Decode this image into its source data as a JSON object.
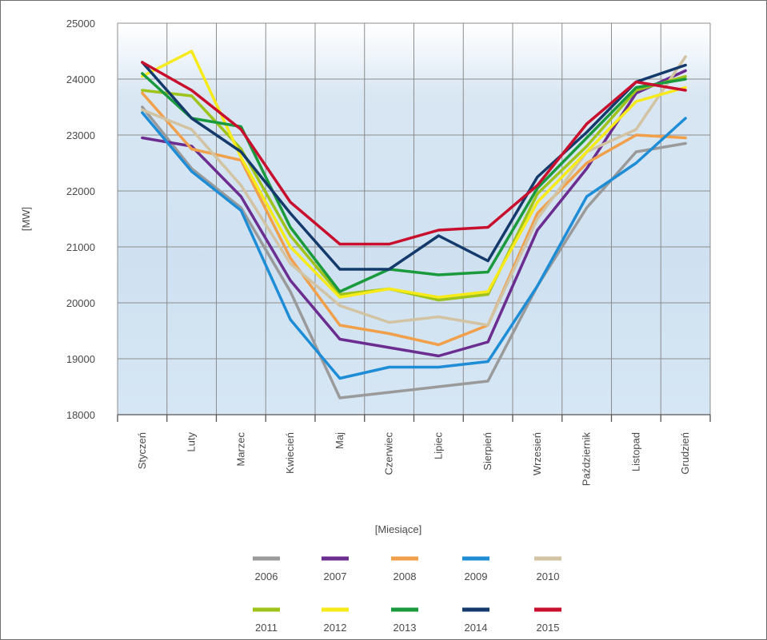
{
  "chart_data": {
    "type": "line",
    "title": "",
    "ylabel": "[MW]",
    "xlabel": "[Miesiące]",
    "ylim": [
      18000,
      25000
    ],
    "yticks": [
      18000,
      19000,
      20000,
      21000,
      22000,
      23000,
      24000,
      25000
    ],
    "grid": true,
    "legend_position": "bottom",
    "categories": [
      "Styczeń",
      "Luty",
      "Marzec",
      "Kwiecień",
      "Maj",
      "Czerwiec",
      "Lipiec",
      "Sierpień",
      "Wrzesień",
      "Październik",
      "Listopad",
      "Grudzień"
    ],
    "series": [
      {
        "name": "2006",
        "color": "#9a9a9a",
        "values": [
          23500,
          22400,
          21700,
          20200,
          18300,
          18400,
          18500,
          18600,
          20300,
          21700,
          22700,
          22850
        ]
      },
      {
        "name": "2007",
        "color": "#6b2d8f",
        "values": [
          22950,
          22800,
          21900,
          20400,
          19350,
          19200,
          19050,
          19300,
          21300,
          22400,
          23750,
          24150
        ]
      },
      {
        "name": "2008",
        "color": "#f0a04b",
        "values": [
          23750,
          22750,
          22550,
          20800,
          19600,
          19450,
          19250,
          19600,
          21600,
          22500,
          23000,
          22950
        ]
      },
      {
        "name": "2009",
        "color": "#1f8dd6",
        "values": [
          23400,
          22350,
          21650,
          19700,
          18650,
          18850,
          18850,
          18950,
          20300,
          21900,
          22500,
          23300
        ]
      },
      {
        "name": "2010",
        "color": "#d2c3a3",
        "values": [
          23450,
          23100,
          22100,
          20700,
          19950,
          19650,
          19750,
          19600,
          21500,
          22700,
          23100,
          24400
        ]
      },
      {
        "name": "2011",
        "color": "#9ec31a",
        "values": [
          23800,
          23700,
          22750,
          21200,
          20150,
          20250,
          20050,
          20150,
          21950,
          22800,
          23800,
          24050
        ]
      },
      {
        "name": "2012",
        "color": "#f7ea1a",
        "values": [
          24050,
          24500,
          22600,
          21000,
          20100,
          20250,
          20100,
          20200,
          21800,
          22700,
          23600,
          23850
        ]
      },
      {
        "name": "2013",
        "color": "#1a9a3d",
        "values": [
          24100,
          23300,
          23150,
          21350,
          20200,
          20600,
          20500,
          20550,
          22050,
          22950,
          23850,
          24000
        ]
      },
      {
        "name": "2014",
        "color": "#143a6b",
        "values": [
          24300,
          23300,
          22700,
          21600,
          20600,
          20600,
          21200,
          20750,
          22250,
          23050,
          23950,
          24250
        ]
      },
      {
        "name": "2015",
        "color": "#c8102e",
        "values": [
          24300,
          23800,
          23100,
          21800,
          21050,
          21050,
          21300,
          21350,
          22100,
          23200,
          23950,
          23800
        ]
      }
    ]
  }
}
